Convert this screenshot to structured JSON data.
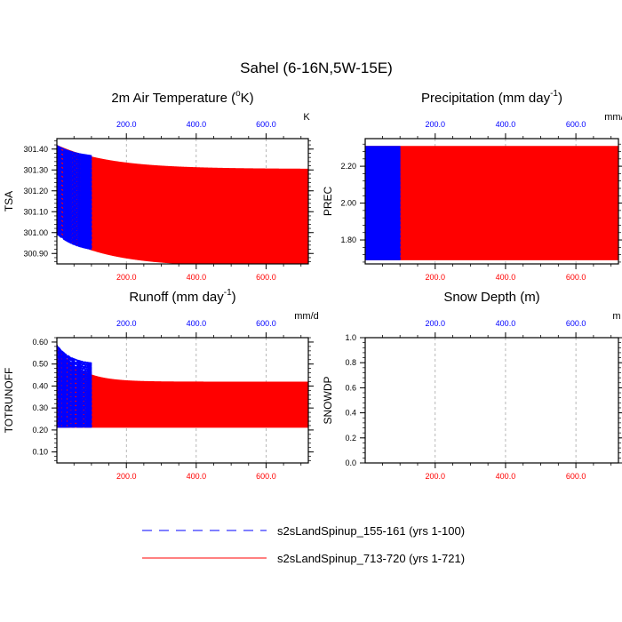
{
  "figure": {
    "title": "Sahel (6-16N,5W-15E)"
  },
  "colors": {
    "series_a": "#0000ff",
    "series_b": "#ff0000",
    "top_axis": "#0000ff",
    "bottom_axis": "#ff0000",
    "grid": "#999999"
  },
  "legend": {
    "placement": "bottom-center",
    "items": [
      {
        "label": "s2sLandSpinup_155-161 (yrs 1-100)",
        "style": "dashed",
        "color": "#0000ff"
      },
      {
        "label": "s2sLandSpinup_713-720 (yrs 1-721)",
        "style": "solid",
        "color": "#ff0000"
      }
    ]
  },
  "chart_data": [
    {
      "id": "tsa",
      "type": "line",
      "title_parts": [
        "2m Air Temperature (",
        "o",
        "K)"
      ],
      "title_fmt": "sup",
      "ylabel": "TSA",
      "units": "K",
      "xlim": [
        1,
        721
      ],
      "ylim": [
        300.85,
        301.45
      ],
      "yticks": [
        "301.40",
        "301.30",
        "301.20",
        "301.10",
        "301.00",
        "300.90"
      ],
      "ytick_values": [
        301.4,
        301.3,
        301.2,
        301.1,
        301.0,
        300.9
      ],
      "xticks_bottom": [
        "200.0",
        "400.0",
        "600.0"
      ],
      "xticks_top": [
        "200.0",
        "400.0",
        "600.0"
      ],
      "xtick_values": [
        200,
        400,
        600
      ],
      "grid": "vertical-dashed",
      "series": [
        {
          "years": [
            1,
            100
          ],
          "base_start": 301.09,
          "base_end": 301.0,
          "amp_start": 0.33,
          "amp_end": 0.36,
          "tau": 60
        },
        {
          "years": [
            1,
            721
          ],
          "base_start": 301.09,
          "base_end": 300.935,
          "amp_start": 0.33,
          "amp_end": 0.37,
          "tau": 150
        }
      ]
    },
    {
      "id": "prec",
      "type": "line",
      "title_parts": [
        "Precipitation (mm day",
        "-1",
        ")"
      ],
      "title_fmt": "sup",
      "ylabel": "PREC",
      "units": "mm/d",
      "xlim": [
        1,
        721
      ],
      "ylim": [
        1.67,
        2.35
      ],
      "yticks": [
        "2.20",
        "2.00",
        "1.80"
      ],
      "ytick_values": [
        2.2,
        2.0,
        1.8
      ],
      "xticks_bottom": [
        "200.0",
        "400.0",
        "600.0"
      ],
      "xticks_top": [
        "200.0",
        "400.0",
        "600.0"
      ],
      "xtick_values": [
        200,
        400,
        600
      ],
      "grid": "vertical-dashed",
      "series": [
        {
          "years": [
            1,
            100
          ],
          "low": 1.69,
          "high": 2.31
        },
        {
          "years": [
            1,
            721
          ],
          "low": 1.69,
          "high": 2.31
        }
      ]
    },
    {
      "id": "runoff",
      "type": "line",
      "title_parts": [
        "Runoff (mm day",
        "-1",
        ")"
      ],
      "title_fmt": "sup",
      "ylabel": "TOTRUNOFF",
      "units": "mm/d",
      "xlim": [
        1,
        721
      ],
      "ylim": [
        0.05,
        0.62
      ],
      "yticks": [
        "0.60",
        "0.50",
        "0.40",
        "0.30",
        "0.20",
        "0.10"
      ],
      "ytick_values": [
        0.6,
        0.5,
        0.4,
        0.3,
        0.2,
        0.1
      ],
      "xticks_bottom": [
        "200.0",
        "400.0",
        "600.0"
      ],
      "xticks_top": [
        "200.0",
        "400.0",
        "600.0"
      ],
      "xtick_values": [
        200,
        400,
        600
      ],
      "grid": "vertical-dashed",
      "series": [
        {
          "years": [
            1,
            100
          ],
          "high_start": 0.59,
          "high_end": 0.5,
          "low": 0.21,
          "tau": 40
        },
        {
          "years": [
            1,
            721
          ],
          "high_start": 0.59,
          "high_end": 0.42,
          "low": 0.21,
          "tau": 60
        }
      ]
    },
    {
      "id": "snowdp",
      "type": "line",
      "title_parts": [
        "Snow Depth (m)"
      ],
      "title_fmt": "plain",
      "ylabel": "SNOWDP",
      "units": "m",
      "xlim": [
        1,
        721
      ],
      "ylim": [
        0.0,
        1.0
      ],
      "yticks": [
        "1.0",
        "0.8",
        "0.6",
        "0.4",
        "0.2",
        "0.0"
      ],
      "ytick_values": [
        1.0,
        0.8,
        0.6,
        0.4,
        0.2,
        0.0
      ],
      "xticks_bottom": [
        "200.0",
        "400.0",
        "600.0"
      ],
      "xticks_top": [
        "200.0",
        "400.0",
        "600.0"
      ],
      "xtick_values": [
        200,
        400,
        600
      ],
      "grid": "vertical-dashed",
      "series": [
        {
          "years": [
            1,
            100
          ],
          "value": 0.0
        },
        {
          "years": [
            1,
            721
          ],
          "value": 0.0
        }
      ]
    }
  ]
}
